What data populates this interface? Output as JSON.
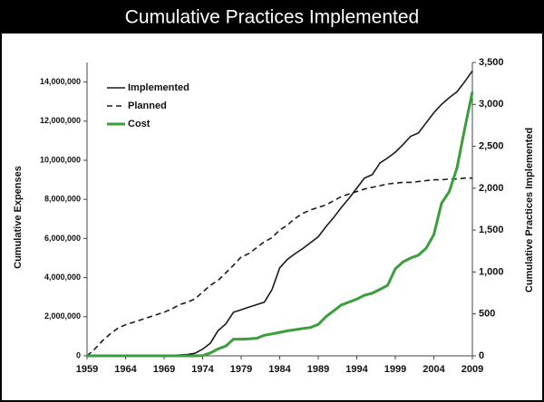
{
  "chart_data": {
    "type": "line",
    "title": "Cumulative Practices Implemented",
    "ylabel": "Cumulative Expenses",
    "y2label": "Cumulative Practices Implemented",
    "legend": "upper left",
    "x": [
      1959,
      1960,
      1961,
      1962,
      1963,
      1964,
      1965,
      1966,
      1967,
      1968,
      1969,
      1970,
      1971,
      1972,
      1973,
      1974,
      1975,
      1976,
      1977,
      1978,
      1979,
      1980,
      1981,
      1982,
      1983,
      1984,
      1985,
      1986,
      1987,
      1988,
      1989,
      1990,
      1991,
      1992,
      1993,
      1994,
      1995,
      1996,
      1997,
      1998,
      1999,
      2000,
      2001,
      2002,
      2003,
      2004,
      2005,
      2006,
      2007,
      2008,
      2009
    ],
    "xlim": [
      1959,
      2009
    ],
    "xticks": [
      1959,
      1964,
      1969,
      1974,
      1979,
      1984,
      1989,
      1994,
      1999,
      2004,
      2009
    ],
    "ylim": [
      0,
      15000000
    ],
    "yticks": [
      0,
      {
        "value": 2000000,
        "label": "2,000,000"
      },
      {
        "value": 4000000,
        "label": "4,000,000"
      },
      {
        "value": 6000000,
        "label": "6,000,000"
      },
      {
        "value": 8000000,
        "label": "8,000,000"
      },
      {
        "value": 10000000,
        "label": "10,000,000"
      },
      {
        "value": 12000000,
        "label": "12,000,000"
      },
      {
        "value": 14000000,
        "label": "14,000,000"
      }
    ],
    "y2lim": [
      0,
      3500
    ],
    "y2ticks": [
      0,
      500,
      {
        "value": 1000,
        "label": "1,000"
      },
      {
        "value": 1500,
        "label": "1,500"
      },
      {
        "value": 2000,
        "label": "2,000"
      },
      {
        "value": 2500,
        "label": "2,500"
      },
      {
        "value": 3000,
        "label": "3,000"
      },
      {
        "value": 3500,
        "label": "3,500"
      }
    ],
    "series": [
      {
        "name": "Implemented",
        "color": "#1a1a1a",
        "style": "solid",
        "axis": "y2",
        "values": [
          0,
          0,
          0,
          0,
          0,
          0,
          0,
          0,
          0,
          0,
          0,
          5,
          10,
          15,
          30,
          80,
          150,
          300,
          380,
          520,
          550,
          580,
          610,
          640,
          790,
          1050,
          1150,
          1220,
          1280,
          1350,
          1420,
          1540,
          1650,
          1770,
          1880,
          2000,
          2120,
          2160,
          2300,
          2360,
          2430,
          2520,
          2620,
          2660,
          2780,
          2900,
          3000,
          3080,
          3150,
          3270,
          3400
        ]
      },
      {
        "name": "Planned",
        "color": "#1a1a1a",
        "style": "dashed",
        "axis": "y2",
        "values": [
          0,
          80,
          180,
          260,
          330,
          370,
          400,
          430,
          460,
          490,
          520,
          560,
          610,
          640,
          680,
          760,
          840,
          900,
          990,
          1080,
          1180,
          1220,
          1290,
          1360,
          1410,
          1500,
          1560,
          1640,
          1700,
          1740,
          1770,
          1800,
          1850,
          1900,
          1930,
          1960,
          1990,
          2010,
          2030,
          2050,
          2060,
          2070,
          2070,
          2080,
          2090,
          2100,
          2100,
          2110,
          2110,
          2120,
          2120
        ]
      },
      {
        "name": "Cost",
        "color": "#3a9e3a",
        "style": "solid",
        "axis": "y",
        "values": [
          0,
          0,
          0,
          0,
          0,
          0,
          0,
          0,
          0,
          0,
          0,
          0,
          0,
          0,
          0,
          10000,
          150000,
          350000,
          500000,
          850000,
          850000,
          870000,
          900000,
          1050000,
          1120000,
          1200000,
          1280000,
          1340000,
          1400000,
          1450000,
          1600000,
          2000000,
          2300000,
          2600000,
          2750000,
          2900000,
          3100000,
          3200000,
          3400000,
          3600000,
          4450000,
          4800000,
          5000000,
          5150000,
          5500000,
          6200000,
          7800000,
          8400000,
          9600000,
          11600000,
          13500000
        ]
      }
    ]
  }
}
